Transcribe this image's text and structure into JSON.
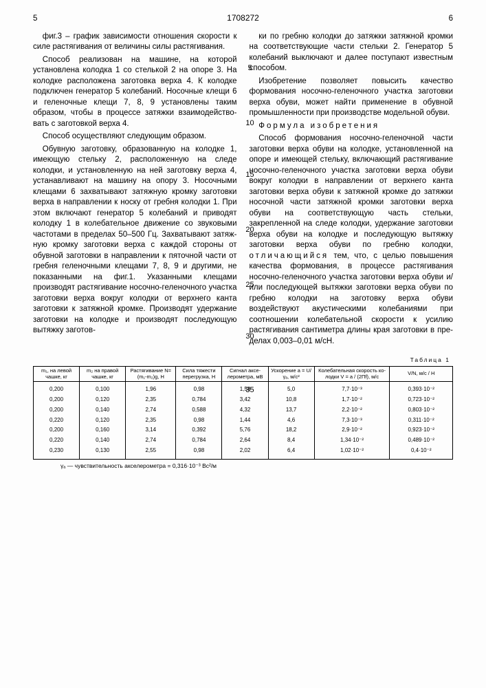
{
  "page_left_no": "5",
  "page_right_no": "6",
  "patent_number": "1708272",
  "line_numbers": [
    "5",
    "10",
    "15",
    "20",
    "25",
    "30",
    "35"
  ],
  "col_left": [
    "фиг.3 – график зависимости отношения ско­рости к силе растягивания от величины силы растягивания.",
    "Способ реализован на машине, на кото­рой установлена колодка 1 со стелькой 2 на опоре 3. На колодке расположена заготовка верха 4. К колодке подключен генератор 5 колебаний. Носочные клещи 6 и геленочные клещи 7, 8, 9 установлены таким образом, чтобы в процессе затяжки взаимодейство­вать с заготовкой верха 4.",
    "Способ осуществляют следующим об­разом.",
    "Обувную заготовку, образованную на колодке 1, имеющую стельку 2, расположен­ную на следе колодки, и установленную на ней заготовку верха 4, устанавливают на машину на опору 3. Носочными клещами 6 захватывают затяжную кромку заготовки верха в направлении к носку от гребня ко­лодки 1. При этом включают генератор 5 колебаний и приводят колодку 1 в колеба­тельное движение со звуковыми частотами в пределах 50–500 Гц. Захватывают затяж­ную кромку заготовки верха с каждой сторо­ны от обувной заготовки в направлении к пяточной части от гребня геленочными кле­щами 7, 8, 9 и другими, не показанными на фиг.1. Указанными клещами производят растягивание носочно-геленочного участка заготовки верха вокруг колодки от верхнего канта заготовки к затяжной кромке. Произ­водят удержание заготовки на колодке и производят последующую вытяжку заготов-"
  ],
  "col_right": [
    "ки по гребню колодки до затяжки затяжной кромки на соответствующие части стельки 2. Генератор 5 колебаний выключают и да­лее поступают известным способом.",
    "Изобретение позволяет повысить каче­ство формования носочно-геленочного уча­стка заготовки верха обуви, может найти применение в обувной промышленности при производстве модельной обуви.",
    "<span class=\"spaced\">Формула изобретения</span>",
    "Способ формования носочно-геленоч­ной части заготовки верха обуви на колодке, установленной на опоре и имеющей стель­ку, включающий растягивание носочно-ге­леночного участка заготовки верха обуви вокруг колодки в направлении от верхнего канта заготовки верха обуви к затяжной кромке до затяжки носочной части затяжной кромки заготовки верха обуви на соответст­вующую часть стельки, закрепленной на следе колодки, удержание заготовки верха обуви на колодке и последующую вытяжку заготовки верха обуви по гребню колодки, <span class=\"spaced\">отличающийся</span> тем, что, с целью повышения качества формования, в процес­се растягивания носочно-геленочного уча­стка заготовки верха обуви и/или последующей вытяжки заготовки верха обу­ви по гребню колодки на заготовку верха обуви воздействуют акустическими коле­баниями при соотношении колебатель­ной скорости к усилию растягивания сантиметра длины края заготовки в пре­делах 0,003–0,01 м/сН."
  ],
  "table": {
    "title": "Таблица 1",
    "columns": [
      "m₁, на левой чашке, кг",
      "m₂ на правой чашке, кг",
      "Растягивание N=(m₁-m₂)g, Н",
      "Сила тяжести перегрузка, Н",
      "Сигнал аксе­лерометра, мВ",
      "Ускорение a = U/γₐ, м/с²",
      "Колебательная скорость ко­лодки V = a / (2Пf), м/с",
      "V/N, м/с / Н"
    ],
    "col_widths": [
      "11%",
      "11%",
      "12%",
      "11%",
      "11%",
      "11%",
      "18%",
      "15%"
    ],
    "rows": [
      [
        "0,200",
        "0,100",
        "1,96",
        "0,98",
        "1,58",
        "5,0",
        "7,7·10⁻³",
        "0,393·10⁻²"
      ],
      [
        "0,200",
        "0,120",
        "2,35",
        "0,784",
        "3,42",
        "10,8",
        "1,7·10⁻²",
        "0,723·10⁻²"
      ],
      [
        "0,200",
        "0,140",
        "2,74",
        "0,588",
        "4,32",
        "13,7",
        "2,2·10⁻²",
        "0,803·10⁻²"
      ],
      [
        "0,220",
        "0,120",
        "2,35",
        "0,98",
        "1,44",
        "4,6",
        "7,3·10⁻³",
        "0,311·10⁻²"
      ],
      [
        "0,200",
        "0,160",
        "3,14",
        "0,392",
        "5,76",
        "18,2",
        "2,9·10⁻²",
        "0,923·10⁻²"
      ],
      [
        "0,220",
        "0,140",
        "2,74",
        "0,784",
        "2,64",
        "8,4",
        "1,34·10⁻²",
        "0,489·10⁻²"
      ],
      [
        "0,230",
        "0,130",
        "2,55",
        "0,98",
        "2,02",
        "6,4",
        "1,02·10⁻²",
        "0,4·10⁻²"
      ]
    ],
    "footnote": "γₐ — чувствительность акселерометра = 0,316·10⁻³ Вс²/м"
  }
}
